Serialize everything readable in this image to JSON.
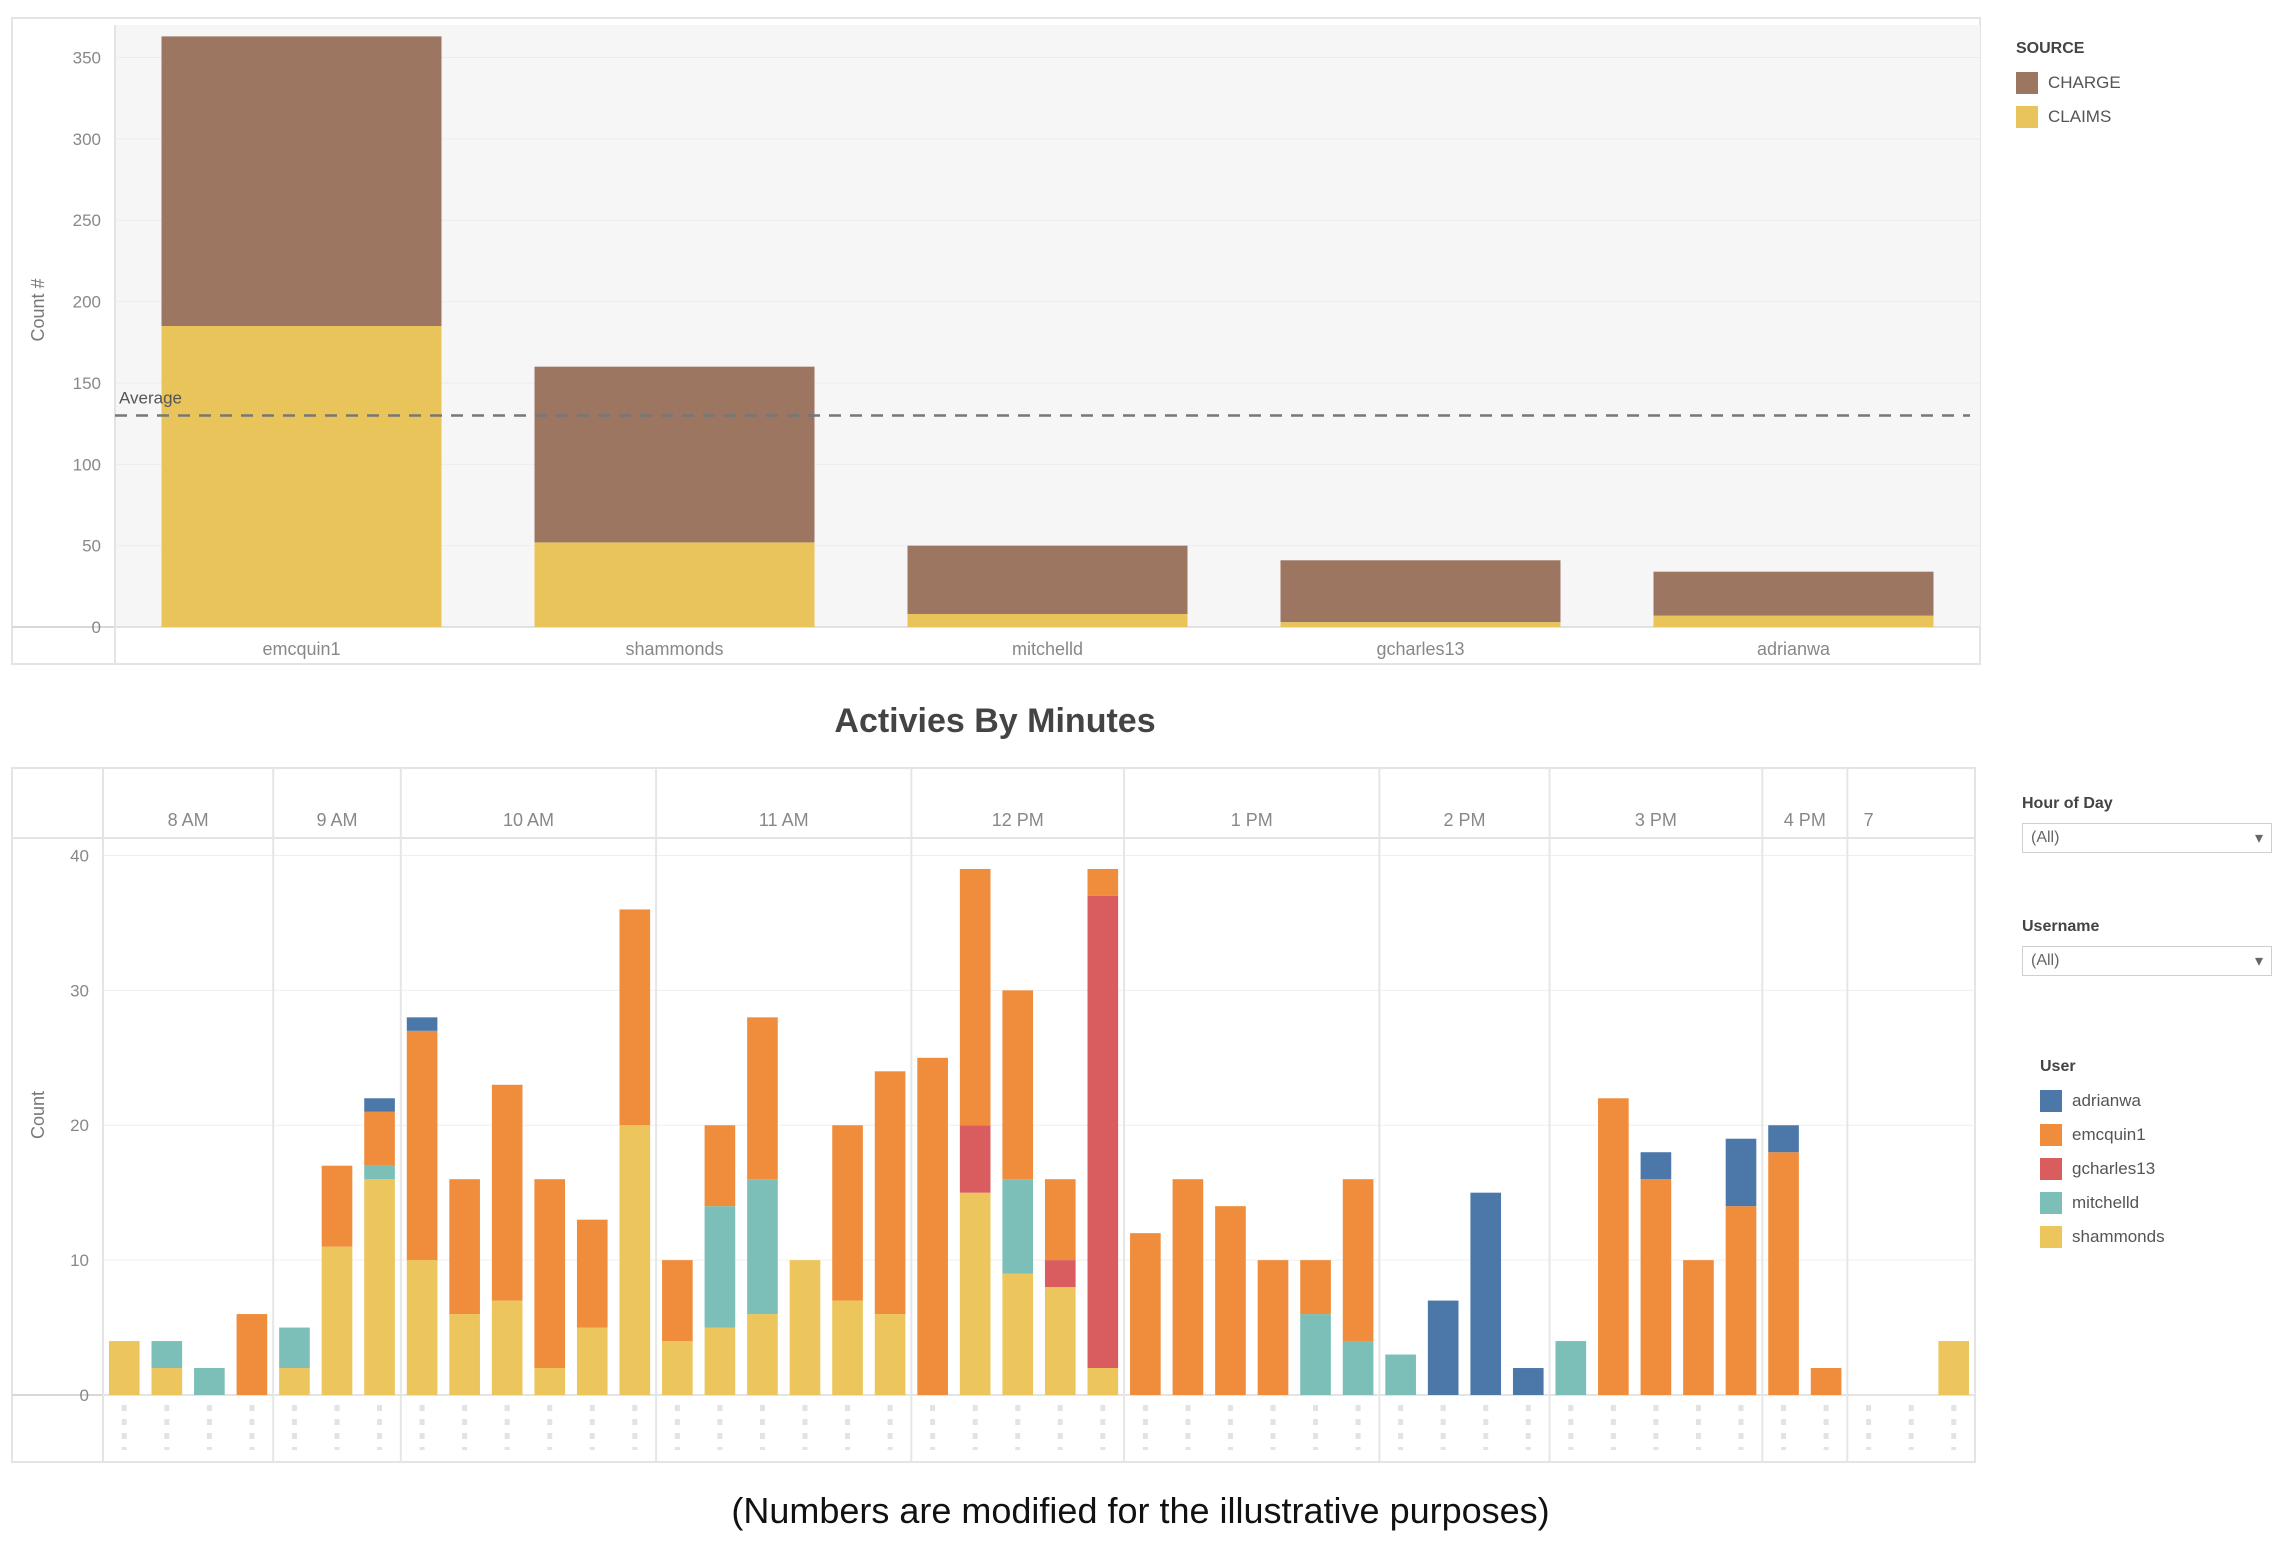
{
  "page": {
    "footnote": "(Numbers are modified for the illustrative purposes)"
  },
  "colors": {
    "CHARGE": "#9c7660",
    "CLAIMS": "#e8c45a",
    "adrianwa": "#4b78a8",
    "emcquin1": "#ef8d3c",
    "gcharles13": "#d95c5f",
    "mitchelld": "#7bbfb8",
    "shammonds": "#ecc55c"
  },
  "top_legend": {
    "title": "SOURCE",
    "items": [
      "CHARGE",
      "CLAIMS"
    ]
  },
  "bottom_title": "Activies By Minutes",
  "filters": [
    {
      "title": "Hour of Day",
      "value": "(All)"
    },
    {
      "title": "Username",
      "value": "(All)"
    }
  ],
  "bottom_legend": {
    "title": "User",
    "items": [
      "adrianwa",
      "emcquin1",
      "gcharles13",
      "mitchelld",
      "shammonds"
    ]
  },
  "chart_data": [
    {
      "type": "bar",
      "stacked": true,
      "title": "",
      "xlabel": "",
      "ylabel": "Count #",
      "ylim": [
        0,
        370
      ],
      "yticks": [
        0,
        50,
        100,
        150,
        200,
        250,
        300,
        350
      ],
      "categories": [
        "emcquin1",
        "shammonds",
        "mitchelld",
        "gcharles13",
        "adrianwa"
      ],
      "series": [
        {
          "name": "CLAIMS",
          "values": [
            185,
            52,
            8,
            3,
            7
          ]
        },
        {
          "name": "CHARGE",
          "values": [
            178,
            108,
            42,
            38,
            27
          ]
        }
      ],
      "reference_line": {
        "label": "Average",
        "value": 130
      },
      "legend": "right"
    },
    {
      "type": "bar",
      "stacked": true,
      "title": "Activies By Minutes",
      "xlabel": "",
      "ylabel": "Count",
      "ylim": [
        0,
        41
      ],
      "yticks": [
        0,
        10,
        20,
        30,
        40
      ],
      "hours": [
        {
          "label": "8 AM",
          "count": 4
        },
        {
          "label": "9 AM",
          "count": 3
        },
        {
          "label": "10 AM",
          "count": 6
        },
        {
          "label": "11 AM",
          "count": 6
        },
        {
          "label": "12 PM",
          "count": 5
        },
        {
          "label": "1 PM",
          "count": 6
        },
        {
          "label": "2 PM",
          "count": 4
        },
        {
          "label": "3 PM",
          "count": 5
        },
        {
          "label": "4 PM",
          "count": 2
        },
        {
          "label": "7",
          "count": 1
        }
      ],
      "series": [
        {
          "name": "shammonds",
          "values": [
            4,
            2,
            0,
            0,
            2,
            11,
            16,
            10,
            6,
            7,
            2,
            5,
            20,
            4,
            5,
            6,
            10,
            7,
            6,
            0,
            15,
            9,
            8,
            2,
            0,
            0,
            0,
            0,
            0,
            0,
            0,
            0,
            0,
            0,
            0,
            0,
            0,
            0,
            0,
            0,
            0,
            0,
            0,
            4
          ]
        },
        {
          "name": "mitchelld",
          "values": [
            0,
            2,
            2,
            0,
            3,
            0,
            1,
            0,
            0,
            0,
            0,
            0,
            0,
            0,
            9,
            10,
            0,
            0,
            0,
            0,
            0,
            7,
            0,
            0,
            0,
            0,
            0,
            0,
            6,
            4,
            3,
            0,
            0,
            0,
            4,
            0,
            0,
            0,
            0,
            0,
            0,
            0,
            0,
            0
          ]
        },
        {
          "name": "gcharles13",
          "values": [
            0,
            0,
            0,
            0,
            0,
            0,
            0,
            0,
            0,
            0,
            0,
            0,
            0,
            0,
            0,
            0,
            0,
            0,
            0,
            0,
            5,
            0,
            2,
            35,
            0,
            0,
            0,
            0,
            0,
            0,
            0,
            0,
            0,
            0,
            0,
            0,
            0,
            0,
            0,
            0,
            0,
            0,
            0,
            0
          ]
        },
        {
          "name": "emcquin1",
          "values": [
            0,
            0,
            0,
            6,
            0,
            6,
            4,
            17,
            10,
            16,
            14,
            8,
            16,
            6,
            6,
            12,
            0,
            13,
            18,
            25,
            19,
            14,
            6,
            2,
            12,
            16,
            14,
            10,
            4,
            12,
            0,
            0,
            0,
            0,
            0,
            22,
            16,
            10,
            14,
            18,
            2,
            0,
            0,
            0
          ]
        },
        {
          "name": "adrianwa",
          "values": [
            0,
            0,
            0,
            0,
            0,
            0,
            1,
            1,
            0,
            0,
            0,
            0,
            0,
            0,
            0,
            0,
            0,
            0,
            0,
            0,
            0,
            0,
            0,
            0,
            0,
            0,
            0,
            0,
            0,
            0,
            0,
            7,
            15,
            2,
            0,
            0,
            2,
            0,
            5,
            2,
            0,
            0,
            0,
            0
          ]
        }
      ],
      "legend": "right"
    }
  ]
}
